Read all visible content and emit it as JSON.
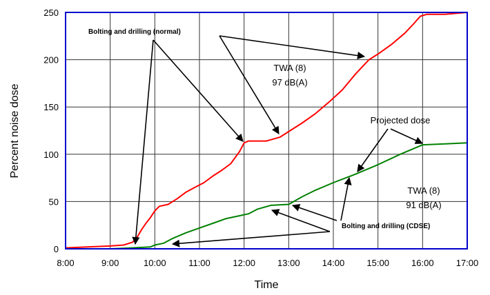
{
  "chart_data": {
    "type": "line",
    "title": "",
    "xlabel": "Time",
    "ylabel": "Percent noise dose",
    "x_ticks": [
      "8:00",
      "9:00",
      "10:00",
      "11:00",
      "12:00",
      "13:00",
      "14:00",
      "15:00",
      "16:00",
      "17:00"
    ],
    "y_ticks": [
      "0",
      "50",
      "100",
      "150",
      "200",
      "250"
    ],
    "xlim": [
      8,
      17
    ],
    "ylim": [
      0,
      250
    ],
    "grid": true,
    "colors": {
      "normal": "#ff0000",
      "cdse": "#008000",
      "frame": "#0000cc",
      "grid": "#333333"
    },
    "series": [
      {
        "key": "normal",
        "points": [
          [
            8.0,
            1
          ],
          [
            8.5,
            2
          ],
          [
            9.0,
            3
          ],
          [
            9.3,
            4
          ],
          [
            9.5,
            7
          ],
          [
            9.6,
            12
          ],
          [
            9.7,
            20
          ],
          [
            9.8,
            27
          ],
          [
            9.9,
            33
          ],
          [
            10.0,
            40
          ],
          [
            10.1,
            45
          ],
          [
            10.3,
            47
          ],
          [
            10.5,
            53
          ],
          [
            10.7,
            60
          ],
          [
            10.9,
            65
          ],
          [
            11.1,
            70
          ],
          [
            11.3,
            77
          ],
          [
            11.5,
            83
          ],
          [
            11.7,
            90
          ],
          [
            11.9,
            103
          ],
          [
            12.0,
            112
          ],
          [
            12.1,
            114
          ],
          [
            12.5,
            114
          ],
          [
            12.8,
            118
          ],
          [
            13.0,
            124
          ],
          [
            13.3,
            133
          ],
          [
            13.6,
            143
          ],
          [
            13.9,
            155
          ],
          [
            14.2,
            168
          ],
          [
            14.5,
            185
          ],
          [
            14.8,
            200
          ],
          [
            15.0,
            206
          ],
          [
            15.3,
            216
          ],
          [
            15.6,
            228
          ],
          [
            15.8,
            238
          ],
          [
            15.95,
            246
          ],
          [
            16.1,
            248
          ],
          [
            16.5,
            248
          ],
          [
            17.0,
            250
          ]
        ]
      },
      {
        "key": "cdse",
        "points": [
          [
            8.0,
            0
          ],
          [
            9.0,
            0
          ],
          [
            9.5,
            1
          ],
          [
            9.9,
            2
          ],
          [
            10.0,
            4
          ],
          [
            10.2,
            6
          ],
          [
            10.4,
            11
          ],
          [
            10.7,
            17
          ],
          [
            11.0,
            22
          ],
          [
            11.3,
            27
          ],
          [
            11.6,
            32
          ],
          [
            11.9,
            35
          ],
          [
            12.1,
            37
          ],
          [
            12.3,
            42
          ],
          [
            12.6,
            46
          ],
          [
            13.0,
            47
          ],
          [
            13.3,
            55
          ],
          [
            13.6,
            62
          ],
          [
            14.0,
            70
          ],
          [
            14.5,
            79
          ],
          [
            15.0,
            89
          ],
          [
            15.5,
            100
          ],
          [
            15.9,
            108
          ],
          [
            16.0,
            110
          ],
          [
            16.5,
            111
          ],
          [
            17.0,
            112
          ]
        ]
      }
    ],
    "annotations": [
      {
        "key": "bd_normal",
        "text": "Bolting and drilling (normal)",
        "style": "bold"
      },
      {
        "key": "twa_normal_1",
        "text": "TWA (8)"
      },
      {
        "key": "twa_normal_2",
        "text": "97 dB(A)"
      },
      {
        "key": "projected",
        "text": "Projected dose"
      },
      {
        "key": "twa_cdse_1",
        "text": "TWA (8)"
      },
      {
        "key": "twa_cdse_2",
        "text": "91 dB(A)"
      },
      {
        "key": "bd_cdse",
        "text": "Bolting and drilling  (CDSE)",
        "style": "bold"
      }
    ]
  }
}
